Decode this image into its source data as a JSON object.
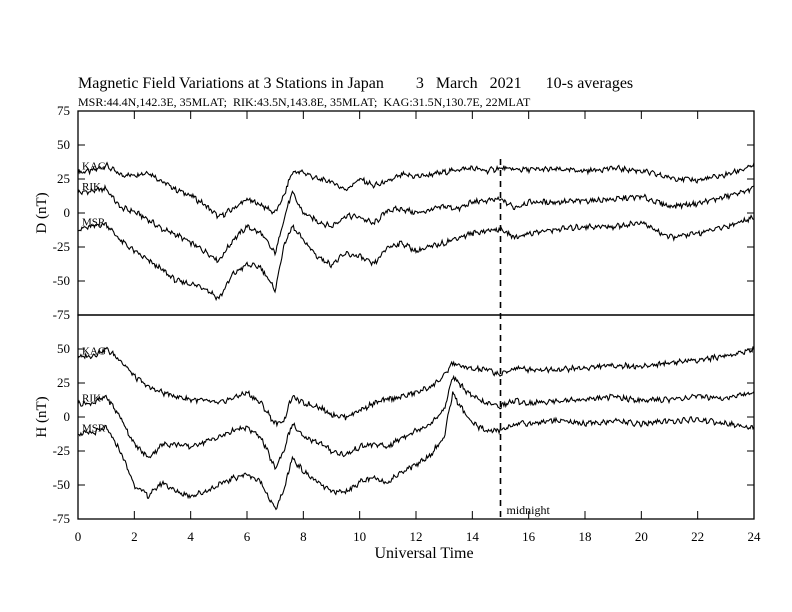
{
  "chart": {
    "title": "Magnetic Field Variations at 3 Stations in Japan        3   March   2021      10-s averages",
    "subtitle": "MSR:44.4N,142.3E, 35MLAT;  RIK:43.5N,143.8E, 35MLAT;  KAG:31.5N,130.7E, 22MLAT",
    "xlabel": "Universal Time",
    "midnight_label": "midnight",
    "midnight_ut": 15
  },
  "chart_data": {
    "type": "line",
    "x_axis": {
      "label": "Universal Time",
      "range": [
        0,
        24
      ],
      "ticks": [
        0,
        2,
        4,
        6,
        8,
        10,
        12,
        14,
        16,
        18,
        20,
        22,
        24
      ]
    },
    "panels": [
      {
        "ylabel": "D (nT)",
        "ylim": [
          -75,
          75
        ],
        "yticks": [
          75,
          50,
          25,
          0,
          -25,
          -50,
          -75
        ],
        "series": [
          {
            "name": "KAG",
            "x": [
              0,
              0.5,
              1,
              1.5,
              2,
              2.5,
              3,
              3.5,
              4,
              4.5,
              5,
              5.5,
              6,
              6.5,
              7,
              7.3,
              7.6,
              8,
              8.5,
              9,
              9.5,
              10,
              10.5,
              11,
              11.5,
              12,
              12.5,
              13,
              13.5,
              14,
              14.5,
              15,
              15.5,
              16,
              17,
              18,
              19,
              20,
              21,
              22,
              23,
              24
            ],
            "y": [
              30,
              31,
              35,
              28,
              28,
              30,
              23,
              17,
              13,
              6,
              -3,
              3,
              10,
              6,
              0,
              12,
              30,
              30,
              25,
              23,
              17,
              25,
              20,
              23,
              28,
              27,
              28,
              30,
              32,
              33,
              31,
              33,
              32,
              32,
              32,
              31,
              33,
              31,
              26,
              24,
              28,
              35
            ]
          },
          {
            "name": "RIK",
            "x": [
              0,
              0.5,
              1,
              1.5,
              2,
              2.5,
              3,
              3.5,
              4,
              4.5,
              5,
              5.5,
              6,
              6.5,
              7,
              7.3,
              7.6,
              8,
              8.5,
              9,
              9.5,
              10,
              10.5,
              11,
              11.5,
              12,
              12.5,
              13,
              13.5,
              14,
              14.5,
              15,
              15.5,
              16,
              17,
              18,
              19,
              20,
              21,
              22,
              23,
              24
            ],
            "y": [
              15,
              16,
              18,
              4,
              1,
              -5,
              -12,
              -16,
              -22,
              -28,
              -35,
              -20,
              -10,
              -15,
              -30,
              -5,
              15,
              0,
              -6,
              -10,
              -2,
              -3,
              -8,
              2,
              3,
              0,
              2,
              5,
              3,
              8,
              9,
              10,
              4,
              8,
              8,
              9,
              10,
              12,
              5,
              7,
              12,
              18
            ]
          },
          {
            "name": "MSR",
            "x": [
              0,
              0.5,
              1,
              1.5,
              2,
              2.5,
              3,
              3.5,
              4,
              4.5,
              5,
              5.5,
              6,
              6.5,
              7,
              7.3,
              7.6,
              8,
              8.5,
              9,
              9.5,
              10,
              10.5,
              11,
              11.5,
              12,
              12.5,
              13,
              13.5,
              14,
              14.5,
              15,
              15.5,
              16,
              17,
              18,
              19,
              20,
              21,
              22,
              23,
              24
            ],
            "y": [
              -12,
              -10,
              -8,
              -20,
              -28,
              -35,
              -42,
              -50,
              -52,
              -55,
              -63,
              -45,
              -38,
              -40,
              -57,
              -25,
              -10,
              -20,
              -32,
              -38,
              -30,
              -32,
              -38,
              -25,
              -22,
              -28,
              -25,
              -22,
              -18,
              -15,
              -13,
              -12,
              -18,
              -15,
              -12,
              -10,
              -10,
              -7,
              -18,
              -15,
              -10,
              -3
            ]
          }
        ]
      },
      {
        "ylabel": "H (nT)",
        "ylim": [
          -75,
          75
        ],
        "yticks": [
          75,
          50,
          25,
          0,
          -25,
          -50,
          -75
        ],
        "series": [
          {
            "name": "KAG",
            "x": [
              0,
              0.5,
              1,
              1.5,
              2,
              2.5,
              3,
              3.5,
              4,
              4.5,
              5,
              5.5,
              6,
              6.5,
              7,
              7.3,
              7.6,
              8,
              8.5,
              9,
              9.5,
              10,
              10.5,
              11,
              11.5,
              12,
              12.5,
              13,
              13.3,
              13.5,
              14,
              14.5,
              15,
              15.5,
              16,
              17,
              18,
              19,
              20,
              21,
              22,
              23,
              24
            ],
            "y": [
              44,
              45,
              50,
              42,
              30,
              22,
              18,
              15,
              13,
              12,
              10,
              14,
              18,
              10,
              -5,
              -3,
              15,
              10,
              8,
              2,
              0,
              5,
              10,
              13,
              15,
              18,
              22,
              30,
              40,
              38,
              35,
              35,
              31,
              36,
              35,
              35,
              36,
              38,
              37,
              40,
              42,
              45,
              50
            ]
          },
          {
            "name": "RIK",
            "x": [
              0,
              0.5,
              1,
              1.5,
              2,
              2.5,
              3,
              3.5,
              4,
              4.5,
              5,
              5.5,
              6,
              6.5,
              7,
              7.3,
              7.6,
              8,
              8.5,
              9,
              9.5,
              10,
              10.5,
              11,
              11.5,
              12,
              12.5,
              13,
              13.3,
              13.5,
              14,
              14.5,
              15,
              15.5,
              16,
              17,
              18,
              19,
              20,
              21,
              22,
              23,
              24
            ],
            "y": [
              10,
              10,
              15,
              0,
              -20,
              -30,
              -20,
              -20,
              -22,
              -18,
              -15,
              -10,
              -8,
              -15,
              -38,
              -25,
              -5,
              -15,
              -18,
              -25,
              -28,
              -22,
              -20,
              -22,
              -15,
              -10,
              -5,
              5,
              30,
              25,
              15,
              10,
              8,
              12,
              10,
              12,
              13,
              15,
              12,
              13,
              15,
              14,
              18
            ]
          },
          {
            "name": "MSR",
            "x": [
              0,
              0.5,
              1,
              1.5,
              2,
              2.5,
              3,
              3.5,
              4,
              4.5,
              5,
              5.5,
              6,
              6.5,
              7,
              7.3,
              7.6,
              8,
              8.5,
              9,
              9.5,
              10,
              10.5,
              11,
              11.5,
              12,
              12.5,
              13,
              13.3,
              13.5,
              14,
              14.5,
              15,
              15.5,
              16,
              17,
              18,
              19,
              20,
              21,
              22,
              23,
              24
            ],
            "y": [
              -12,
              -12,
              -8,
              -25,
              -50,
              -58,
              -48,
              -55,
              -58,
              -55,
              -50,
              -45,
              -42,
              -48,
              -68,
              -55,
              -30,
              -40,
              -48,
              -55,
              -55,
              -48,
              -45,
              -48,
              -40,
              -35,
              -28,
              -15,
              18,
              10,
              -5,
              -10,
              -10,
              -5,
              -5,
              -2,
              -5,
              -3,
              -5,
              -3,
              -2,
              -5,
              -8
            ]
          }
        ]
      }
    ]
  }
}
